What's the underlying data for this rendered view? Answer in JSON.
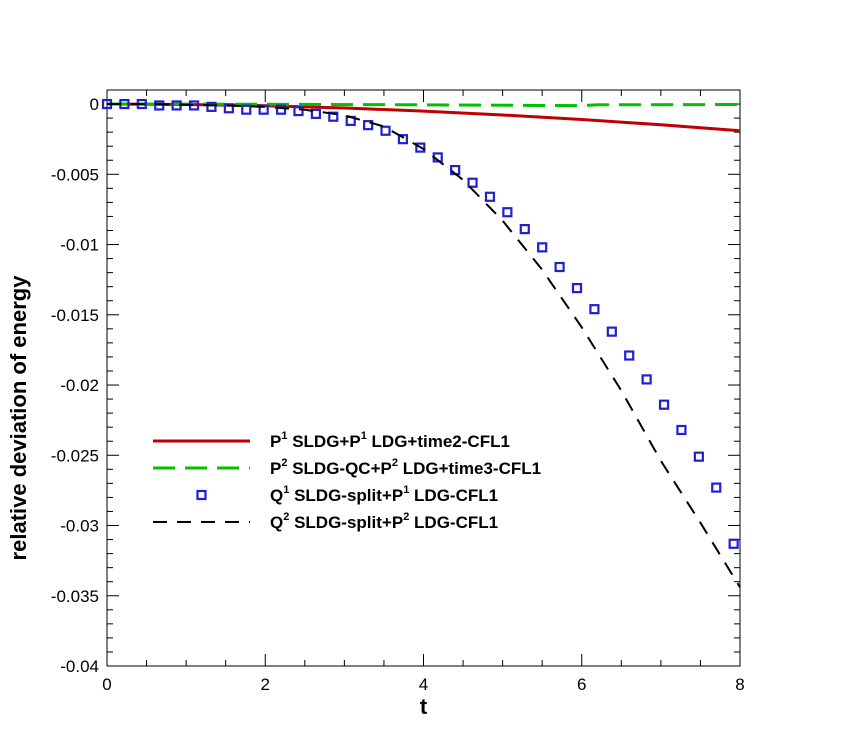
{
  "chart_data": {
    "type": "line",
    "title": "",
    "xlabel": "t",
    "ylabel": "relative deviation of energy",
    "xlim": [
      0,
      8
    ],
    "ylim": [
      -0.04,
      0.001
    ],
    "x_ticks": [
      0,
      2,
      4,
      6,
      8
    ],
    "x_tick_labels": [
      "0",
      "2",
      "4",
      "6",
      "8"
    ],
    "y_ticks": [
      0,
      -0.005,
      -0.01,
      -0.015,
      -0.02,
      -0.025,
      -0.03,
      -0.035,
      -0.04
    ],
    "y_tick_labels": [
      "0",
      "-0.005",
      "-0.01",
      "-0.015",
      "-0.02",
      "-0.025",
      "-0.03",
      "-0.035",
      "-0.04"
    ],
    "grid": false,
    "legend_position": "center",
    "series": [
      {
        "name_parts": [
          "P",
          "1",
          " SLDG+P",
          "1",
          " LDG+time2-CFL1"
        ],
        "style": "solid",
        "color": "#c00000",
        "x": [
          0,
          1,
          2,
          3,
          4,
          5,
          6,
          7,
          8
        ],
        "y": [
          0,
          -3e-05,
          -0.00012,
          -0.00028,
          -0.0005,
          -0.00078,
          -0.0011,
          -0.00148,
          -0.0019
        ]
      },
      {
        "name_parts": [
          "P",
          "2",
          " SLDG-QC+P",
          "2",
          " LDG+time3-CFL1"
        ],
        "style": "dashed",
        "color": "#00c000",
        "x": [
          0,
          2,
          4,
          6,
          6.2,
          8
        ],
        "y": [
          0,
          -2e-05,
          -5e-05,
          -0.00012,
          -5e-05,
          -3e-05
        ]
      },
      {
        "name_parts": [
          "Q",
          "1",
          " SLDG-split+P",
          "1",
          " LDG-CFL1"
        ],
        "style": "markers",
        "color": "#2020d0",
        "x": [
          0,
          0.22,
          0.44,
          0.66,
          0.88,
          1.1,
          1.32,
          1.54,
          1.76,
          1.98,
          2.2,
          2.42,
          2.64,
          2.86,
          3.08,
          3.3,
          3.52,
          3.74,
          3.96,
          4.18,
          4.4,
          4.62,
          4.84,
          5.06,
          5.28,
          5.5,
          5.72,
          5.94,
          6.16,
          6.38,
          6.6,
          6.82,
          7.04,
          7.26,
          7.48,
          7.7,
          7.92
        ],
        "y": [
          0,
          0,
          0,
          -0.0001,
          -0.0001,
          -0.0001,
          -0.0002,
          -0.0003,
          -0.0004,
          -0.0004,
          -0.0004,
          -0.0005,
          -0.0007,
          -0.0009,
          -0.0012,
          -0.0015,
          -0.0019,
          -0.0025,
          -0.0031,
          -0.0038,
          -0.0047,
          -0.0056,
          -0.0066,
          -0.0077,
          -0.0089,
          -0.0102,
          -0.0116,
          -0.0131,
          -0.0146,
          -0.0162,
          -0.0179,
          -0.0196,
          -0.0214,
          -0.0232,
          -0.0251,
          -0.0273,
          -0.0313
        ]
      },
      {
        "name_parts": [
          "Q",
          "2",
          " SLDG-split+P",
          "2",
          " LDG-CFL1"
        ],
        "style": "dashed",
        "color": "#000000",
        "x": [
          0,
          0.5,
          1,
          1.5,
          2,
          2.5,
          3,
          3.5,
          4,
          4.5,
          5,
          5.5,
          6,
          6.5,
          7,
          7.5,
          8
        ],
        "y": [
          0,
          0,
          -5e-05,
          -0.0001,
          -0.0002,
          -0.0004,
          -0.0008,
          -0.0016,
          -0.0032,
          -0.0054,
          -0.0083,
          -0.0118,
          -0.0159,
          -0.0204,
          -0.0254,
          -0.0298,
          -0.0344
        ]
      }
    ]
  }
}
